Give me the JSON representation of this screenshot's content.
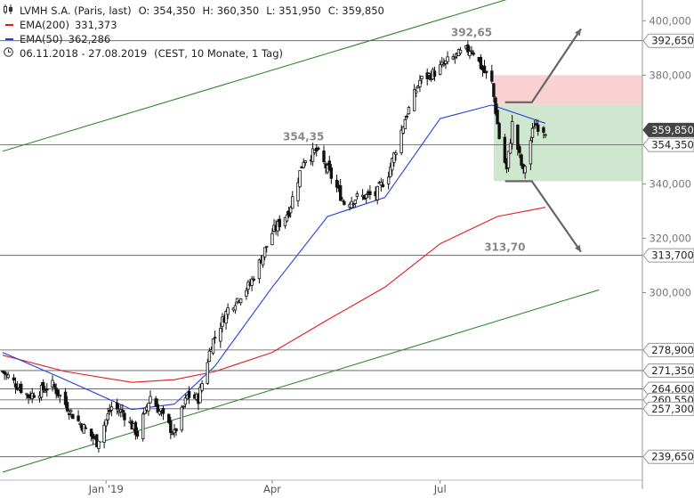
{
  "header": {
    "name": "LVMH S.A. (Paris, last)",
    "ohlc": [
      "O: 354,350",
      "H: 360,350",
      "L: 351,950",
      "C: 359,850"
    ],
    "ema200_label": "EMA(200)",
    "ema200_value": "331,373",
    "ema50_label": "EMA(50)",
    "ema50_value": "362,286",
    "period": "06.11.2018 - 27.08.2019",
    "period_note": "(CEST, 10 Monate, 1 Tag)"
  },
  "colors": {
    "ema200": "#e41a1c",
    "ema50": "#1f3fe0",
    "trend": "#2e8b2e",
    "candle": "#111111",
    "target_up": "#f9c9c9",
    "target_down": "#c6e3c6",
    "arrow": "#666666"
  },
  "chart_data": {
    "type": "candlestick",
    "title": "LVMH S.A. (Paris, last)",
    "ylim": [
      233,
      405
    ],
    "y_ticks": [
      {
        "value": 400,
        "label": "400,000"
      },
      {
        "value": 380,
        "label": "380,000"
      },
      {
        "value": 340,
        "label": "340,000"
      },
      {
        "value": 320,
        "label": "320,000"
      },
      {
        "value": 300,
        "label": "300,000"
      }
    ],
    "x_ticks": [
      {
        "value": "2019-01-01",
        "label": "Jan '19"
      },
      {
        "value": "2019-04-01",
        "label": "Apr"
      },
      {
        "value": "2019-07-01",
        "label": "Jul"
      }
    ],
    "x_range": [
      "2018-11-06",
      "2019-08-27"
    ],
    "horizontal_levels": [
      {
        "value": 392.65,
        "label": "392,650"
      },
      {
        "value": 354.35,
        "label": "354,350"
      },
      {
        "value": 313.7,
        "label": "313,700"
      },
      {
        "value": 278.9,
        "label": "278,900"
      },
      {
        "value": 271.35,
        "label": "271,350"
      },
      {
        "value": 264.6,
        "label": "264,600"
      },
      {
        "value": 260.55,
        "label": "260,550"
      },
      {
        "value": 257.3,
        "label": "257,300"
      },
      {
        "value": 239.65,
        "label": "239,650"
      }
    ],
    "last_price": {
      "value": 359.85,
      "label": "359,850"
    },
    "annotations": [
      {
        "date": "2019-07-18",
        "value": 392.65,
        "text": "392,65"
      },
      {
        "date": "2019-04-18",
        "value": 354.35,
        "text": "354,35"
      },
      {
        "date": "2019-08-05",
        "value": 313.7,
        "text": "313,70"
      }
    ],
    "zones": [
      {
        "name": "upper",
        "from": "2019-07-30",
        "to": "2019-08-27",
        "low": 369,
        "high": 380
      },
      {
        "name": "lower",
        "from": "2019-07-30",
        "to": "2019-08-27",
        "low": 341,
        "high": 369
      }
    ],
    "anchors": [
      {
        "date": "2018-11-06",
        "close": 271
      },
      {
        "date": "2018-11-20",
        "close": 262
      },
      {
        "date": "2018-12-03",
        "close": 266
      },
      {
        "date": "2018-12-14",
        "close": 255
      },
      {
        "date": "2018-12-27",
        "close": 245
      },
      {
        "date": "2019-01-04",
        "close": 258
      },
      {
        "date": "2019-01-10",
        "close": 256
      },
      {
        "date": "2019-01-18",
        "close": 248
      },
      {
        "date": "2019-01-25",
        "close": 262
      },
      {
        "date": "2019-02-01",
        "close": 254
      },
      {
        "date": "2019-02-07",
        "close": 248
      },
      {
        "date": "2019-02-14",
        "close": 262
      },
      {
        "date": "2019-02-20",
        "close": 261
      },
      {
        "date": "2019-02-27",
        "close": 281
      },
      {
        "date": "2019-03-08",
        "close": 294
      },
      {
        "date": "2019-03-20",
        "close": 303
      },
      {
        "date": "2019-04-01",
        "close": 322
      },
      {
        "date": "2019-04-10",
        "close": 330
      },
      {
        "date": "2019-04-18",
        "close": 349
      },
      {
        "date": "2019-04-25",
        "close": 352
      },
      {
        "date": "2019-05-02",
        "close": 344
      },
      {
        "date": "2019-05-10",
        "close": 333
      },
      {
        "date": "2019-05-17",
        "close": 335
      },
      {
        "date": "2019-05-27",
        "close": 336
      },
      {
        "date": "2019-06-03",
        "close": 344
      },
      {
        "date": "2019-06-12",
        "close": 364
      },
      {
        "date": "2019-06-20",
        "close": 378
      },
      {
        "date": "2019-06-28",
        "close": 381
      },
      {
        "date": "2019-07-05",
        "close": 385
      },
      {
        "date": "2019-07-12",
        "close": 388
      },
      {
        "date": "2019-07-18",
        "close": 390
      },
      {
        "date": "2019-07-24",
        "close": 382
      },
      {
        "date": "2019-07-29",
        "close": 377
      },
      {
        "date": "2019-08-02",
        "close": 357
      },
      {
        "date": "2019-08-06",
        "close": 345
      },
      {
        "date": "2019-08-09",
        "close": 362
      },
      {
        "date": "2019-08-15",
        "close": 344
      },
      {
        "date": "2019-08-21",
        "close": 362
      },
      {
        "date": "2019-08-27",
        "close": 359.85
      }
    ],
    "ema200": [
      {
        "date": "2018-11-06",
        "value": 277
      },
      {
        "date": "2018-12-10",
        "value": 271
      },
      {
        "date": "2019-01-15",
        "value": 267
      },
      {
        "date": "2019-02-07",
        "value": 268
      },
      {
        "date": "2019-03-01",
        "value": 271
      },
      {
        "date": "2019-04-01",
        "value": 278
      },
      {
        "date": "2019-05-01",
        "value": 290
      },
      {
        "date": "2019-06-01",
        "value": 302
      },
      {
        "date": "2019-07-01",
        "value": 318
      },
      {
        "date": "2019-08-01",
        "value": 328
      },
      {
        "date": "2019-08-27",
        "value": 331.37
      }
    ],
    "ema50": [
      {
        "date": "2018-11-06",
        "value": 278
      },
      {
        "date": "2018-12-10",
        "value": 268
      },
      {
        "date": "2019-01-15",
        "value": 257
      },
      {
        "date": "2019-02-07",
        "value": 259
      },
      {
        "date": "2019-03-01",
        "value": 273
      },
      {
        "date": "2019-04-01",
        "value": 302
      },
      {
        "date": "2019-05-01",
        "value": 328
      },
      {
        "date": "2019-06-01",
        "value": 335
      },
      {
        "date": "2019-07-01",
        "value": 364
      },
      {
        "date": "2019-07-29",
        "value": 369
      },
      {
        "date": "2019-08-27",
        "value": 362.29
      }
    ],
    "trendlines": [
      {
        "from": {
          "date": "2018-11-06",
          "value": 352
        },
        "to": {
          "date": "2019-08-27",
          "value": 418
        }
      },
      {
        "from": {
          "date": "2018-11-06",
          "value": 234
        },
        "to": {
          "date": "2019-08-27",
          "value": 301
        }
      }
    ],
    "arrows": [
      {
        "from": {
          "date": "2019-08-10",
          "value": 370
        },
        "to": {
          "date": "2019-08-27",
          "value": 397
        }
      },
      {
        "from": {
          "date": "2019-08-10",
          "value": 341
        },
        "to": {
          "date": "2019-08-27",
          "value": 315
        }
      }
    ]
  }
}
